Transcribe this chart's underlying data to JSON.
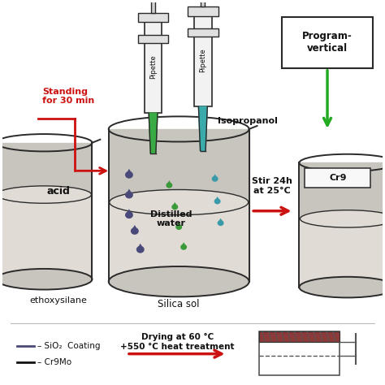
{
  "bg_color": "#ffffff",
  "beaker_fill": "#c8c4be",
  "beaker_edge": "#2a2a2a",
  "liquid_fill": "#e0dbd5",
  "drop_dark": "#4a4a7a",
  "drop_green": "#3a9a3a",
  "drop_teal": "#3a9aaa",
  "pipette_green": "#3aaa44",
  "pipette_teal": "#3aaaaa",
  "pipette_body": "#f2f2f2",
  "arrow_red": "#cc1111",
  "arrow_green": "#22aa22",
  "text_main": "#111111",
  "legend_brown": "#8b3a3a",
  "labels": {
    "acid": "acid",
    "ethoxysilane": "ethoxysilane",
    "silica_sol": "Silica sol",
    "cr9": "Cr9",
    "pipette": "Pipette",
    "isopropanol": "Isopropanol",
    "distilled": "Distilled\nwater",
    "standing": "Standing\nfor 30 min",
    "stir": "Stir 24h\nat 25°C",
    "program": "Program-\nvertical",
    "legend1": "– SiO₂  Coating",
    "legend2": "– Cr9Mo",
    "drying": "Drying at 60 °C\n+550 °C heat treatment"
  }
}
